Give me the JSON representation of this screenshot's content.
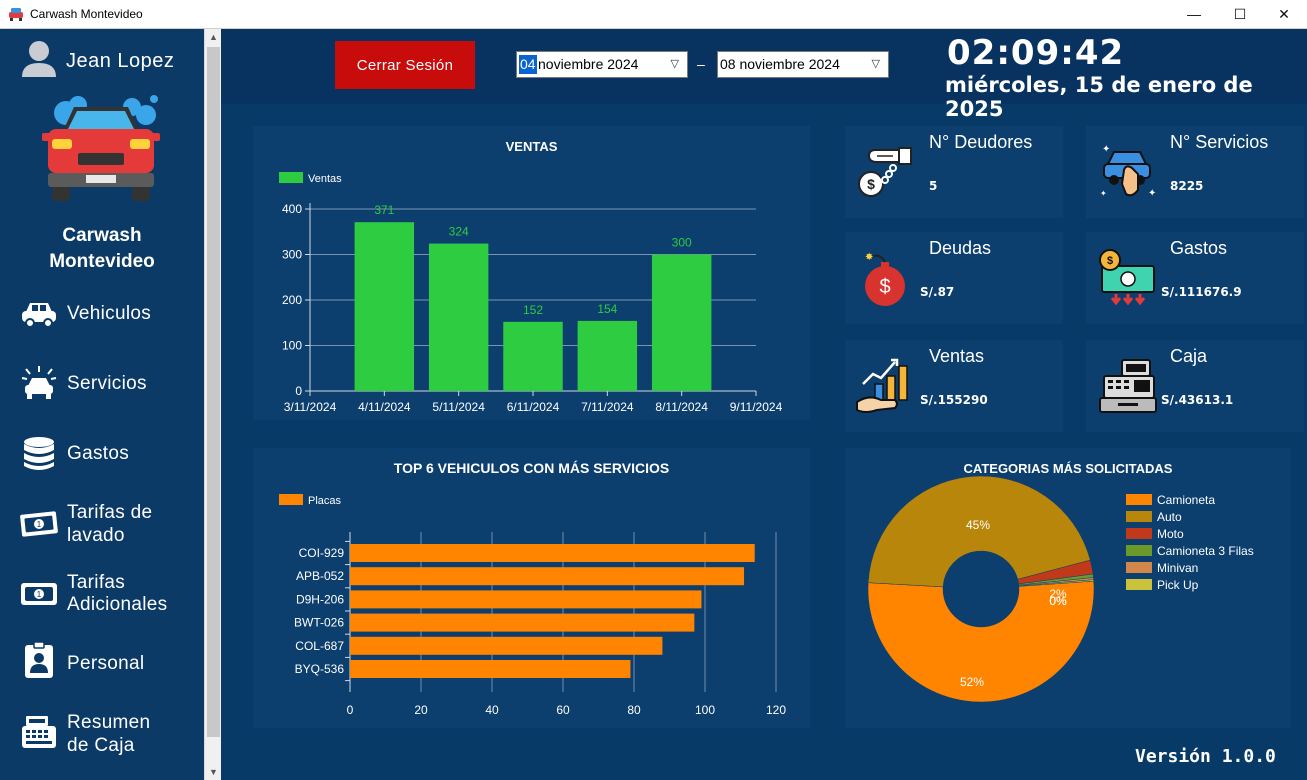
{
  "window": {
    "title": "Carwash Montevideo",
    "minimize": "—",
    "maximize": "☐",
    "close": "✕"
  },
  "sidebar": {
    "user_name": "Jean Lopez",
    "brand_line1": "Carwash",
    "brand_line2": "Montevideo",
    "items": [
      {
        "line1": "Vehiculos",
        "line2": "",
        "icon": "car-icon"
      },
      {
        "line1": "Servicios",
        "line2": "",
        "icon": "service-car-icon"
      },
      {
        "line1": "Gastos",
        "line2": "",
        "icon": "coins-icon"
      },
      {
        "line1": "Tarifas de",
        "line2": "lavado",
        "icon": "banknote-icon"
      },
      {
        "line1": "Tarifas",
        "line2": "Adicionales",
        "icon": "banknote-icon"
      },
      {
        "line1": "Personal",
        "line2": "",
        "icon": "id-badge-icon"
      },
      {
        "line1": "Resumen",
        "line2": "de Caja",
        "icon": "cash-register-icon"
      }
    ]
  },
  "header": {
    "logout_label": "Cerrar Sesión",
    "date_from_day": "04",
    "date_from_rest": " noviembre 2024",
    "date_to": "08 noviembre 2024",
    "dash": "–",
    "clock": "02:09:42",
    "date_long": "miércoles, 15 de enero de 2025"
  },
  "cards": [
    {
      "title": "N° Deudores",
      "value": "5",
      "icon": "debtors-icon"
    },
    {
      "title": "N° Servicios",
      "value": "8225",
      "icon": "car-wash-hand-icon"
    },
    {
      "title": "Deudas",
      "value": "S/.87",
      "icon": "money-bomb-icon"
    },
    {
      "title": "Gastos",
      "value": "S/.111676.9",
      "icon": "expenses-icon"
    },
    {
      "title": "Ventas",
      "value": "S/.155290",
      "icon": "sales-growth-icon"
    },
    {
      "title": "Caja",
      "value": "S/.43613.1",
      "icon": "cash-register-icon"
    }
  ],
  "version": "Versión 1.0.0",
  "colors": {
    "green": "#2ecc40",
    "orange": "#ff8400",
    "red_button": "#c80b0b"
  },
  "chart_data": [
    {
      "type": "bar",
      "title": "VENTAS",
      "legend": "Ventas",
      "x_ticks": [
        "3/11/2024",
        "4/11/2024",
        "5/11/2024",
        "6/11/2024",
        "7/11/2024",
        "8/11/2024",
        "9/11/2024"
      ],
      "categories": [
        "4/11/2024",
        "5/11/2024",
        "6/11/2024",
        "7/11/2024",
        "8/11/2024"
      ],
      "values": [
        371,
        324,
        152,
        154,
        300
      ],
      "y_ticks": [
        0,
        100,
        200,
        300,
        400
      ],
      "ylim": [
        0,
        400
      ],
      "color": "#2ecc40"
    },
    {
      "type": "bar",
      "orientation": "horizontal",
      "title": "TOP 6 VEHICULOS CON MÁS SERVICIOS",
      "legend": "Placas",
      "categories": [
        "COI-929",
        "APB-052",
        "D9H-206",
        "BWT-026",
        "COL-687",
        "BYQ-536"
      ],
      "values": [
        114,
        111,
        99,
        97,
        88,
        79
      ],
      "x_ticks": [
        0,
        20,
        40,
        60,
        80,
        100,
        120
      ],
      "xlim": [
        0,
        120
      ],
      "color": "#ff8400"
    },
    {
      "type": "pie",
      "title": "CATEGORIAS MÁS SOLICITADAS",
      "labels": [
        "Camioneta",
        "Auto",
        "Moto",
        "Camioneta 3 Filas",
        "Minivan",
        "Pick Up"
      ],
      "values": [
        52,
        45,
        2,
        0.5,
        0.3,
        0.2
      ],
      "value_labels": [
        "52%",
        "45%",
        "2%",
        "0%",
        "0%",
        "0%"
      ],
      "colors": [
        "#ff8400",
        "#b8860b",
        "#c0391b",
        "#6b9a2a",
        "#d2874a",
        "#c9c23a"
      ],
      "legend_position": "right"
    }
  ]
}
